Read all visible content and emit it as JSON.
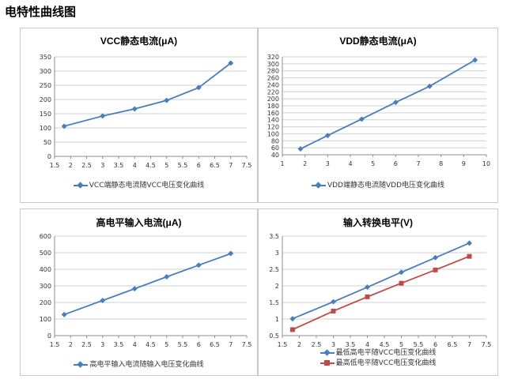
{
  "page_title": "电特性曲线图",
  "chart_data": [
    {
      "type": "line",
      "title": "VCC静态电流(μA)",
      "xlim": [
        1.5,
        7.5
      ],
      "ylim": [
        0,
        350
      ],
      "x_ticks": [
        "1.5",
        "2",
        "2.5",
        "3",
        "3.5",
        "4",
        "4.5",
        "5",
        "5.5",
        "6",
        "6.5",
        "7",
        "7.5"
      ],
      "y_ticks": [
        "0",
        "50",
        "100",
        "150",
        "200",
        "250",
        "300",
        "350"
      ],
      "grid": "horizontal",
      "legend_position": "bottom",
      "series": [
        {
          "name": "VCC端静态电流随VCC电压变化曲线",
          "color": "#4a7ebb",
          "marker": "diamond",
          "x": [
            1.8,
            3,
            4,
            5,
            6,
            7
          ],
          "y": [
            106,
            142,
            167,
            197,
            242,
            328
          ]
        }
      ]
    },
    {
      "type": "line",
      "title": "VDD静态电流(μA)",
      "xlim": [
        1,
        10
      ],
      "ylim": [
        40,
        320
      ],
      "x_ticks": [
        "1",
        "2",
        "3",
        "4",
        "5",
        "6",
        "7",
        "8",
        "9",
        "10"
      ],
      "y_ticks": [
        "40",
        "60",
        "80",
        "100",
        "120",
        "140",
        "160",
        "180",
        "200",
        "220",
        "240",
        "260",
        "280",
        "300",
        "320"
      ],
      "grid": "horizontal",
      "legend_position": "bottom",
      "series": [
        {
          "name": "VDD端静态电流随VDD电压变化曲线",
          "color": "#4a7ebb",
          "marker": "diamond",
          "x": [
            1.8,
            3,
            4.5,
            6,
            7.5,
            9.5
          ],
          "y": [
            57,
            95,
            142,
            190,
            236,
            311
          ]
        }
      ]
    },
    {
      "type": "line",
      "title": "高电平输入电流(μA)",
      "xlim": [
        1.5,
        7.5
      ],
      "ylim": [
        0,
        600
      ],
      "x_ticks": [
        "1.5",
        "2",
        "2.5",
        "3",
        "3.5",
        "4",
        "4.5",
        "5",
        "5.5",
        "6",
        "6.5",
        "7",
        "7.5"
      ],
      "y_ticks": [
        "0",
        "100",
        "200",
        "300",
        "400",
        "500",
        "600"
      ],
      "grid": "horizontal",
      "legend_position": "bottom",
      "series": [
        {
          "name": "高电平输入电流随输入电压变化曲线",
          "color": "#4a7ebb",
          "marker": "diamond",
          "x": [
            1.8,
            3,
            4,
            5,
            6,
            7
          ],
          "y": [
            127,
            212,
            283,
            355,
            425,
            495
          ]
        }
      ]
    },
    {
      "type": "line",
      "title": "输入转换电平(V)",
      "xlim": [
        1.5,
        7.5
      ],
      "ylim": [
        0.5,
        3.5
      ],
      "x_ticks": [
        "1.5",
        "2",
        "2.5",
        "3",
        "3.5",
        "4",
        "4.5",
        "5",
        "5.5",
        "6",
        "6.5",
        "7",
        "7.5"
      ],
      "y_ticks": [
        "0.5",
        "1",
        "1.5",
        "2",
        "2.5",
        "3",
        "3.5"
      ],
      "grid": "horizontal",
      "legend_position": "bottom",
      "series": [
        {
          "name": "最低高电平随VCC电压变化曲线",
          "color": "#4a7ebb",
          "marker": "diamond",
          "x": [
            1.8,
            3,
            4,
            5,
            6,
            7
          ],
          "y": [
            1.01,
            1.52,
            1.96,
            2.41,
            2.85,
            3.29
          ]
        },
        {
          "name": "最高低电平随VCC电压变化曲线",
          "color": "#be4b48",
          "marker": "square",
          "x": [
            1.8,
            3,
            4,
            5,
            6,
            7
          ],
          "y": [
            0.68,
            1.24,
            1.67,
            2.08,
            2.48,
            2.89
          ]
        }
      ]
    }
  ]
}
